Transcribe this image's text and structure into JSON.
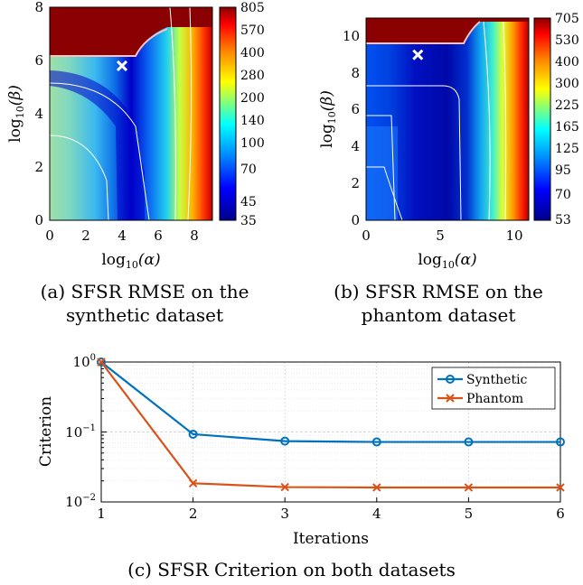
{
  "panels": [
    {
      "caption_line1": "(a) SFSR RMSE on the",
      "caption_line2": "synthetic dataset",
      "chart_data": {
        "type": "heatmap",
        "xlabel_base": "log",
        "xlabel_sub": "10",
        "xlabel_arg": "(α)",
        "ylabel_base": "log",
        "ylabel_sub": "10",
        "ylabel_arg": "(β)",
        "x_ticks": [
          "0",
          "2",
          "4",
          "6",
          "8"
        ],
        "y_ticks": [
          "0",
          "2",
          "4",
          "6",
          "8"
        ],
        "xlim": [
          0,
          9
        ],
        "ylim": [
          0,
          8
        ],
        "colorbar_ticks": [
          "805",
          "570",
          "400",
          "280",
          "200",
          "140",
          "100",
          "70",
          "45",
          "35"
        ],
        "optimum_marker": {
          "x": 4.0,
          "y": 5.8
        },
        "saturated_region": "top-left"
      }
    },
    {
      "caption_line1": "(b) SFSR RMSE on the",
      "caption_line2": "phantom dataset",
      "chart_data": {
        "type": "heatmap",
        "xlabel_base": "log",
        "xlabel_sub": "10",
        "xlabel_arg": "(α)",
        "ylabel_base": "log",
        "ylabel_sub": "10",
        "ylabel_arg": "(β)",
        "x_ticks": [
          "0",
          "5",
          "10"
        ],
        "y_ticks": [
          "0",
          "2",
          "4",
          "6",
          "8",
          "10"
        ],
        "xlim": [
          0,
          11
        ],
        "ylim": [
          0,
          11
        ],
        "colorbar_ticks": [
          "705",
          "530",
          "400",
          "300",
          "225",
          "165",
          "125",
          "95",
          "70",
          "53"
        ],
        "optimum_marker": {
          "x": 3.5,
          "y": 9.0
        },
        "saturated_region": "top-left"
      }
    }
  ],
  "line_panel": {
    "caption": "(c) SFSR Criterion on both datasets",
    "chart_data": {
      "type": "line",
      "xlabel": "Iterations",
      "ylabel": "Criterion",
      "x": [
        1,
        2,
        3,
        4,
        5,
        6
      ],
      "x_ticks": [
        "1",
        "2",
        "3",
        "4",
        "5",
        "6"
      ],
      "y_scale": "log",
      "ylim": [
        0.01,
        1
      ],
      "y_ticks": [
        {
          "base": "10",
          "exp": "0"
        },
        {
          "base": "10",
          "exp": "−1"
        },
        {
          "base": "10",
          "exp": "−2"
        }
      ],
      "grid": true,
      "legend_position": "top-right",
      "series": [
        {
          "name": "Synthetic",
          "values": [
            1.0,
            0.093,
            0.074,
            0.072,
            0.072,
            0.072
          ],
          "color": "#0072BD",
          "marker": "circle"
        },
        {
          "name": "Phantom",
          "values": [
            1.0,
            0.0185,
            0.0163,
            0.0161,
            0.0161,
            0.0161
          ],
          "color": "#D95319",
          "marker": "x"
        }
      ]
    }
  }
}
